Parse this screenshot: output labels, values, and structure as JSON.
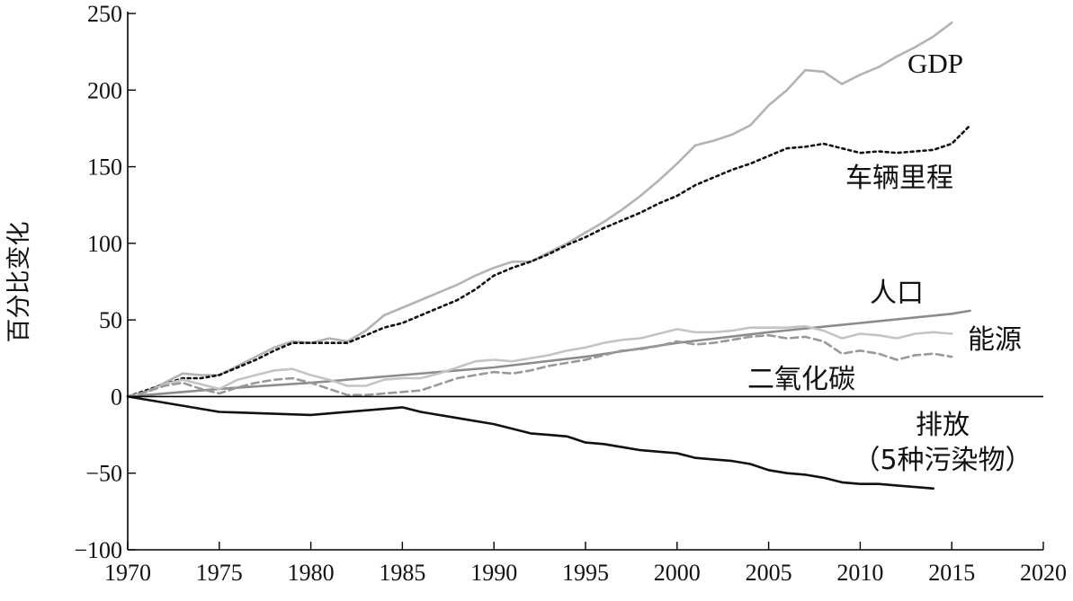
{
  "chart_data": {
    "type": "line",
    "title": "",
    "xlabel": "",
    "ylabel": "百分比变化",
    "xlim": [
      1970,
      2020
    ],
    "ylim": [
      -100,
      250
    ],
    "x_ticks": [
      1970,
      1975,
      1980,
      1985,
      1990,
      1995,
      2000,
      2005,
      2010,
      2015,
      2020
    ],
    "y_ticks": [
      -100,
      -50,
      0,
      50,
      100,
      150,
      200,
      250
    ],
    "y_tick_labels": [
      "−100",
      "−50",
      "0",
      "50",
      "100",
      "150",
      "200",
      "250"
    ],
    "reference_line_y": 0,
    "grid": false,
    "legend": "inline-labels",
    "series": [
      {
        "name": "GDP",
        "label_lines": [
          "GDP"
        ],
        "color": "#b3b3b3",
        "dash": "solid",
        "x": [
          1970,
          1971,
          1972,
          1973,
          1974,
          1975,
          1976,
          1977,
          1978,
          1979,
          1980,
          1981,
          1982,
          1983,
          1984,
          1985,
          1986,
          1987,
          1988,
          1989,
          1990,
          1991,
          1992,
          1993,
          1994,
          1995,
          1996,
          1997,
          1998,
          1999,
          2000,
          2001,
          2002,
          2003,
          2004,
          2005,
          2006,
          2007,
          2008,
          2009,
          2010,
          2011,
          2012,
          2013,
          2014,
          2015
        ],
        "y": [
          0,
          3,
          9,
          15,
          14,
          14,
          20,
          26,
          32,
          36,
          35,
          38,
          36,
          43,
          53,
          58,
          63,
          68,
          73,
          79,
          84,
          88,
          88,
          94,
          100,
          107,
          114,
          122,
          131,
          141,
          152,
          164,
          167,
          171,
          177,
          190,
          200,
          213,
          212,
          204,
          210,
          215,
          222,
          228,
          235,
          244
        ]
      },
      {
        "name": "车辆里程",
        "label_lines": [
          "车辆里程"
        ],
        "color": "#111111",
        "dash": "dotted",
        "x": [
          1970,
          1971,
          1972,
          1973,
          1974,
          1975,
          1976,
          1977,
          1978,
          1979,
          1980,
          1981,
          1982,
          1983,
          1984,
          1985,
          1986,
          1987,
          1988,
          1989,
          1990,
          1991,
          1992,
          1993,
          1994,
          1995,
          1996,
          1997,
          1998,
          1999,
          2000,
          2001,
          2002,
          2003,
          2004,
          2005,
          2006,
          2007,
          2008,
          2009,
          2010,
          2011,
          2012,
          2013,
          2014,
          2015,
          2016
        ],
        "y": [
          0,
          4,
          8,
          12,
          12,
          14,
          19,
          24,
          30,
          35,
          35,
          35,
          35,
          40,
          45,
          48,
          53,
          58,
          63,
          70,
          79,
          84,
          88,
          93,
          99,
          104,
          110,
          115,
          120,
          126,
          131,
          138,
          143,
          148,
          152,
          157,
          162,
          163,
          165,
          162,
          159,
          160,
          159,
          160,
          161,
          165,
          177
        ]
      },
      {
        "name": "人口",
        "label_lines": [
          "人口"
        ],
        "color": "#8c8c8c",
        "dash": "solid",
        "x": [
          1970,
          1975,
          1980,
          1985,
          1990,
          1995,
          2000,
          2005,
          2010,
          2015,
          2016
        ],
        "y": [
          0,
          5,
          9,
          14,
          19,
          26,
          35,
          42,
          48,
          54,
          56
        ]
      },
      {
        "name": "能源",
        "label_lines": [
          "能源"
        ],
        "color": "#c4c4c4",
        "dash": "solid",
        "x": [
          1970,
          1971,
          1972,
          1973,
          1974,
          1975,
          1976,
          1977,
          1978,
          1979,
          1980,
          1981,
          1982,
          1983,
          1984,
          1985,
          1986,
          1987,
          1988,
          1989,
          1990,
          1991,
          1992,
          1993,
          1994,
          1995,
          1996,
          1997,
          1998,
          1999,
          2000,
          2001,
          2002,
          2003,
          2004,
          2005,
          2006,
          2007,
          2008,
          2009,
          2010,
          2011,
          2012,
          2013,
          2014,
          2015
        ],
        "y": [
          0,
          3,
          8,
          11,
          8,
          5,
          11,
          14,
          17,
          18,
          14,
          11,
          7,
          7,
          11,
          12,
          12,
          15,
          19,
          23,
          24,
          23,
          25,
          27,
          30,
          32,
          35,
          37,
          38,
          41,
          44,
          42,
          42,
          43,
          45,
          45,
          45,
          46,
          43,
          38,
          41,
          40,
          38,
          41,
          42,
          41
        ]
      },
      {
        "name": "二氧化碳",
        "label_lines": [
          "二氧化碳"
        ],
        "color": "#999999",
        "dash": "dashed",
        "x": [
          1970,
          1971,
          1972,
          1973,
          1974,
          1975,
          1976,
          1977,
          1978,
          1979,
          1980,
          1981,
          1982,
          1983,
          1984,
          1985,
          1986,
          1987,
          1988,
          1989,
          1990,
          1991,
          1992,
          1993,
          1994,
          1995,
          1996,
          1997,
          1998,
          1999,
          2000,
          2001,
          2002,
          2003,
          2004,
          2005,
          2006,
          2007,
          2008,
          2009,
          2010,
          2011,
          2012,
          2013,
          2014,
          2015
        ],
        "y": [
          0,
          3,
          7,
          9,
          5,
          2,
          6,
          9,
          11,
          12,
          9,
          5,
          1,
          1,
          2,
          3,
          4,
          8,
          12,
          14,
          16,
          15,
          17,
          20,
          22,
          24,
          27,
          30,
          31,
          33,
          36,
          34,
          35,
          37,
          39,
          40,
          38,
          39,
          36,
          28,
          30,
          28,
          24,
          27,
          28,
          26
        ]
      },
      {
        "name": "排放（5种污染物）",
        "label_lines": [
          "排放",
          "（5种污染物）"
        ],
        "color": "#111111",
        "dash": "solid",
        "x": [
          1970,
          1975,
          1980,
          1985,
          1986,
          1988,
          1990,
          1991,
          1992,
          1993,
          1994,
          1995,
          1996,
          1997,
          1998,
          1999,
          2000,
          2001,
          2002,
          2003,
          2004,
          2005,
          2006,
          2007,
          2008,
          2009,
          2010,
          2011,
          2012,
          2013,
          2014
        ],
        "y": [
          0,
          -10,
          -12,
          -7,
          -10,
          -14,
          -18,
          -21,
          -24,
          -25,
          -26,
          -30,
          -31,
          -33,
          -35,
          -36,
          -37,
          -40,
          -41,
          -42,
          -44,
          -48,
          -50,
          -51,
          -53,
          -56,
          -57,
          -57,
          -58,
          -59,
          -60
        ]
      }
    ]
  }
}
